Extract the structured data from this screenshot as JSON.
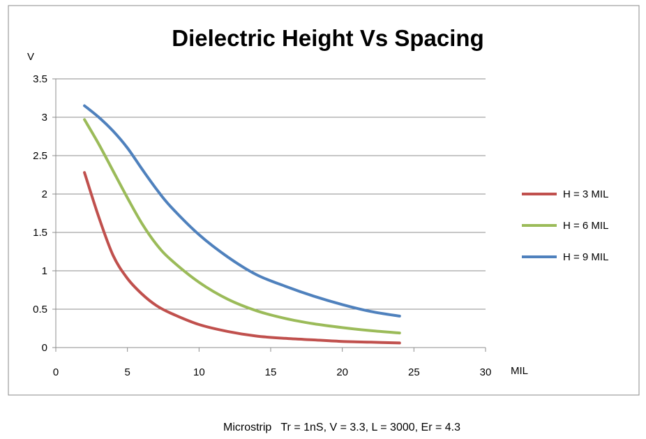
{
  "chart_data": {
    "type": "line",
    "title": "Dielectric Height Vs Spacing",
    "xlabel": "MIL",
    "ylabel": "V",
    "xlim": [
      0,
      30
    ],
    "ylim": [
      0,
      3.5
    ],
    "x_ticks": [
      0,
      5,
      10,
      15,
      20,
      25,
      30
    ],
    "y_ticks": [
      0,
      0.5,
      1,
      1.5,
      2,
      2.5,
      3,
      3.5
    ],
    "x_tick_labels": [
      "0",
      "5",
      "10",
      "15",
      "20",
      "25",
      "30"
    ],
    "y_tick_labels": [
      "0",
      "0.5",
      "1",
      "1.5",
      "2",
      "2.5",
      "3",
      "3.5"
    ],
    "grid": "horizontal",
    "legend_position": "right",
    "series": [
      {
        "name": "H = 3 MIL",
        "color": "#c0504d",
        "x": [
          2,
          3,
          4,
          5,
          6,
          7,
          8,
          10,
          12,
          14,
          16,
          18,
          20,
          22,
          24
        ],
        "y": [
          2.28,
          1.7,
          1.2,
          0.9,
          0.7,
          0.55,
          0.45,
          0.3,
          0.21,
          0.15,
          0.12,
          0.1,
          0.08,
          0.07,
          0.06
        ]
      },
      {
        "name": "H = 6 MIL",
        "color": "#9bbb59",
        "x": [
          2,
          3,
          4,
          5,
          6,
          7,
          8,
          10,
          12,
          14,
          16,
          18,
          20,
          22,
          24
        ],
        "y": [
          2.97,
          2.65,
          2.3,
          1.95,
          1.62,
          1.35,
          1.15,
          0.85,
          0.63,
          0.48,
          0.38,
          0.31,
          0.26,
          0.22,
          0.19
        ]
      },
      {
        "name": "H = 9 MIL",
        "color": "#4f81bd",
        "x": [
          2,
          3,
          4,
          5,
          6,
          7,
          8,
          10,
          12,
          14,
          16,
          18,
          20,
          22,
          24
        ],
        "y": [
          3.15,
          3.0,
          2.82,
          2.6,
          2.33,
          2.07,
          1.84,
          1.47,
          1.18,
          0.95,
          0.8,
          0.67,
          0.56,
          0.47,
          0.41
        ]
      }
    ],
    "caption": "Microstrip   Tr = 1nS, V = 3.3, L = 3000, Er = 4.3"
  }
}
